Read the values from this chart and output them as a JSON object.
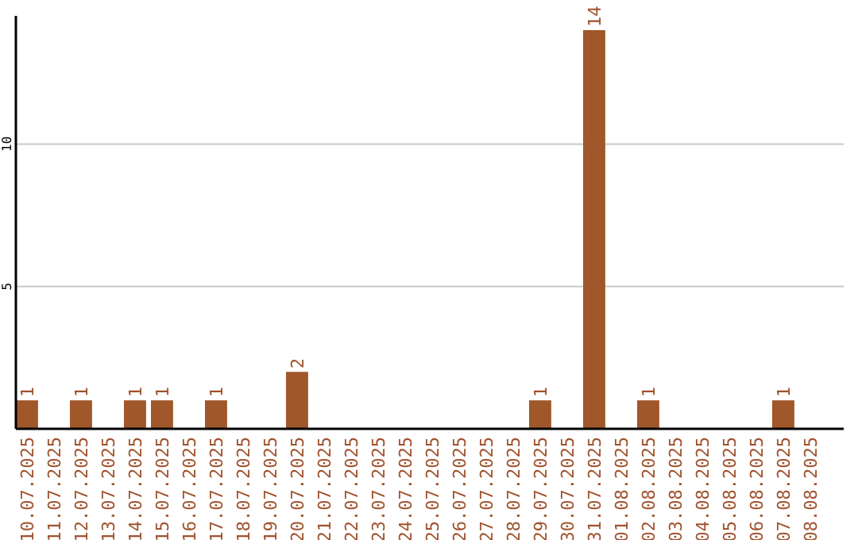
{
  "chart_data": {
    "type": "bar",
    "categories": [
      "10.07.2025",
      "11.07.2025",
      "12.07.2025",
      "13.07.2025",
      "14.07.2025",
      "15.07.2025",
      "16.07.2025",
      "17.07.2025",
      "18.07.2025",
      "19.07.2025",
      "20.07.2025",
      "21.07.2025",
      "22.07.2025",
      "23.07.2025",
      "24.07.2025",
      "25.07.2025",
      "26.07.2025",
      "27.07.2025",
      "28.07.2025",
      "29.07.2025",
      "30.07.2025",
      "31.07.2025",
      "01.08.2025",
      "02.08.2025",
      "03.08.2025",
      "04.08.2025",
      "05.08.2025",
      "06.08.2025",
      "07.08.2025",
      "08.08.2025"
    ],
    "values": [
      1,
      0,
      1,
      0,
      1,
      1,
      0,
      1,
      0,
      0,
      2,
      0,
      0,
      0,
      0,
      0,
      0,
      0,
      0,
      1,
      0,
      14,
      0,
      1,
      0,
      0,
      0,
      0,
      1,
      0
    ],
    "value_labels": [
      "1",
      null,
      "1",
      null,
      "1",
      "1",
      null,
      "1",
      null,
      null,
      "2",
      null,
      null,
      null,
      null,
      null,
      null,
      null,
      null,
      "1",
      null,
      "14",
      null,
      "1",
      null,
      null,
      null,
      null,
      "1",
      null
    ],
    "color": "#a0572a",
    "ylim": [
      0,
      14.5
    ],
    "yticks": [
      5,
      10
    ],
    "grid": "y"
  }
}
